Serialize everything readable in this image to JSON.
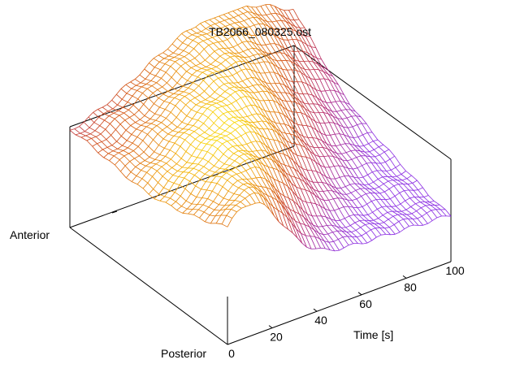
{
  "chart_data": {
    "type": "surface",
    "title": "TB2066_080325.ost",
    "xlabel": "Time [s]",
    "ylabel_start": "Posterior",
    "ylabel_end": "Anterior",
    "xlim": [
      0,
      100
    ],
    "x_ticks": [
      {
        "value": 0,
        "label": "0"
      },
      {
        "value": 20,
        "label": "20"
      },
      {
        "value": 40,
        "label": "40"
      },
      {
        "value": 60,
        "label": "60"
      },
      {
        "value": 80,
        "label": "80"
      },
      {
        "value": 100,
        "label": "100"
      }
    ],
    "colormap": [
      "#8a2be2",
      "#b2226e",
      "#d04a10",
      "#f0a000",
      "#ffff00"
    ],
    "grid": false,
    "legend": "none"
  }
}
